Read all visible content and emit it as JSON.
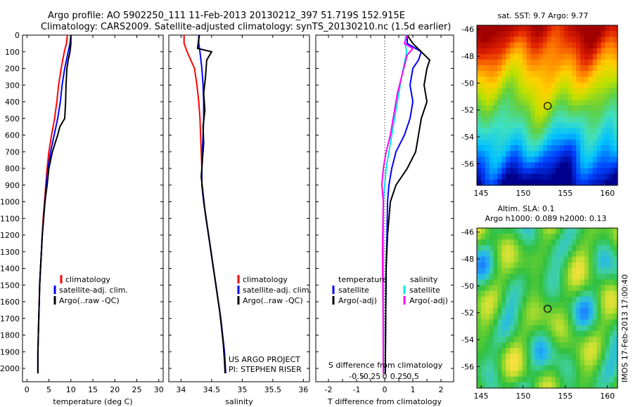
{
  "header": {
    "line1": "Argo profile: AO 5902250_111 11-Feb-2013 20130212_397 51.719S 152.915E",
    "line2": "Climatology: CARS2009. Satellite-adjusted climatology: synTS_20130210.nc (1.5d earlier)"
  },
  "colors": {
    "climatology": "#ff0000",
    "satellite": "#0000ff",
    "argo": "#000000",
    "salinity_satellite": "#00e5e5",
    "salinity_argo": "#ff00ff"
  },
  "chart_data": [
    {
      "type": "line",
      "name": "temperature_profile",
      "xlabel": "temperature (deg C)",
      "ylabel": "",
      "xlim": [
        -1,
        31
      ],
      "ylim": [
        2080,
        0
      ],
      "xticks": [
        0,
        5,
        10,
        15,
        20,
        25,
        30
      ],
      "yticks": [
        0,
        100,
        200,
        300,
        400,
        500,
        600,
        700,
        800,
        900,
        1000,
        1100,
        1200,
        1300,
        1400,
        1500,
        1600,
        1700,
        1800,
        1900,
        2000
      ],
      "legend": [
        "climatology",
        "satellite-adj. clim.",
        "Argo(..raw -QC)"
      ],
      "series": [
        {
          "name": "climatology",
          "color": "#ff0000",
          "points": [
            [
              9.2,
              0
            ],
            [
              9.0,
              50
            ],
            [
              8.5,
              100
            ],
            [
              7.8,
              200
            ],
            [
              7.2,
              300
            ],
            [
              6.8,
              400
            ],
            [
              6.3,
              500
            ],
            [
              5.6,
              600
            ],
            [
              5.0,
              700
            ],
            [
              4.6,
              800
            ],
            [
              4.3,
              900
            ],
            [
              4.0,
              1000
            ],
            [
              3.7,
              1100
            ],
            [
              3.5,
              1200
            ],
            [
              3.3,
              1300
            ],
            [
              3.1,
              1400
            ],
            [
              2.9,
              1500
            ],
            [
              2.8,
              1600
            ],
            [
              2.7,
              1700
            ],
            [
              2.6,
              1800
            ],
            [
              2.5,
              1900
            ],
            [
              2.5,
              2030
            ]
          ]
        },
        {
          "name": "satellite-adj. clim.",
          "color": "#0000ff",
          "points": [
            [
              10.0,
              0
            ],
            [
              9.8,
              50
            ],
            [
              9.4,
              100
            ],
            [
              8.6,
              200
            ],
            [
              8.0,
              300
            ],
            [
              7.6,
              400
            ],
            [
              7.0,
              500
            ],
            [
              6.2,
              600
            ],
            [
              5.4,
              700
            ],
            [
              4.8,
              800
            ],
            [
              4.4,
              900
            ],
            [
              4.1,
              1000
            ],
            [
              3.8,
              1100
            ],
            [
              3.5,
              1200
            ],
            [
              3.3,
              1300
            ],
            [
              3.1,
              1400
            ],
            [
              2.9,
              1500
            ],
            [
              2.8,
              1600
            ],
            [
              2.7,
              1700
            ],
            [
              2.6,
              1800
            ],
            [
              2.5,
              1900
            ],
            [
              2.5,
              2030
            ]
          ]
        },
        {
          "name": "Argo(..raw -QC)",
          "color": "#000000",
          "points": [
            [
              10.0,
              0
            ],
            [
              10.0,
              50
            ],
            [
              9.8,
              100
            ],
            [
              9.4,
              150
            ],
            [
              9.1,
              200
            ],
            [
              8.9,
              300
            ],
            [
              8.8,
              400
            ],
            [
              8.6,
              500
            ],
            [
              7.5,
              550
            ],
            [
              7.0,
              600
            ],
            [
              5.8,
              700
            ],
            [
              5.0,
              800
            ],
            [
              4.6,
              900
            ],
            [
              4.1,
              1000
            ],
            [
              3.8,
              1100
            ],
            [
              3.5,
              1200
            ],
            [
              3.3,
              1300
            ],
            [
              3.1,
              1400
            ],
            [
              2.9,
              1500
            ],
            [
              2.8,
              1600
            ],
            [
              2.7,
              1700
            ],
            [
              2.6,
              1800
            ],
            [
              2.5,
              1900
            ],
            [
              2.5,
              2030
            ]
          ]
        }
      ]
    },
    {
      "type": "line",
      "name": "salinity_profile",
      "xlabel": "salinity",
      "xlim": [
        33.8,
        36.1
      ],
      "ylim": [
        2080,
        0
      ],
      "xticks": [
        34,
        34.5,
        35,
        35.5,
        36
      ],
      "legend": [
        "climatology",
        "satellite-adj. clim.",
        "Argo(..raw -QC)"
      ],
      "credit_line1": "US ARGO PROJECT",
      "credit_line2": "PI: STEPHEN RISER",
      "series": [
        {
          "name": "climatology",
          "color": "#ff0000",
          "points": [
            [
              34.05,
              0
            ],
            [
              34.05,
              50
            ],
            [
              34.1,
              100
            ],
            [
              34.22,
              200
            ],
            [
              34.26,
              300
            ],
            [
              34.29,
              400
            ],
            [
              34.31,
              500
            ],
            [
              34.32,
              600
            ],
            [
              34.33,
              700
            ],
            [
              34.34,
              800
            ],
            [
              34.34,
              900
            ],
            [
              34.37,
              1000
            ],
            [
              34.41,
              1100
            ],
            [
              34.45,
              1200
            ],
            [
              34.49,
              1300
            ],
            [
              34.53,
              1400
            ],
            [
              34.57,
              1500
            ],
            [
              34.61,
              1600
            ],
            [
              34.65,
              1700
            ],
            [
              34.68,
              1800
            ],
            [
              34.71,
              1900
            ],
            [
              34.73,
              2030
            ]
          ]
        },
        {
          "name": "satellite-adj. clim.",
          "color": "#0000ff",
          "points": [
            [
              34.29,
              0
            ],
            [
              34.29,
              50
            ],
            [
              34.31,
              100
            ],
            [
              34.34,
              200
            ],
            [
              34.36,
              300
            ],
            [
              34.37,
              400
            ],
            [
              34.37,
              500
            ],
            [
              34.36,
              600
            ],
            [
              34.35,
              700
            ],
            [
              34.34,
              800
            ],
            [
              34.34,
              900
            ],
            [
              34.37,
              1000
            ],
            [
              34.41,
              1100
            ],
            [
              34.45,
              1200
            ],
            [
              34.49,
              1300
            ],
            [
              34.53,
              1400
            ],
            [
              34.57,
              1500
            ],
            [
              34.61,
              1600
            ],
            [
              34.65,
              1700
            ],
            [
              34.68,
              1800
            ],
            [
              34.71,
              1900
            ],
            [
              34.73,
              2030
            ]
          ]
        },
        {
          "name": "Argo(..raw -QC)",
          "color": "#000000",
          "points": [
            [
              34.3,
              0
            ],
            [
              34.28,
              50
            ],
            [
              34.27,
              80
            ],
            [
              34.5,
              100
            ],
            [
              34.42,
              150
            ],
            [
              34.4,
              250
            ],
            [
              34.37,
              350
            ],
            [
              34.39,
              450
            ],
            [
              34.36,
              550
            ],
            [
              34.37,
              650
            ],
            [
              34.35,
              750
            ],
            [
              34.33,
              850
            ],
            [
              34.36,
              950
            ],
            [
              34.39,
              1050
            ],
            [
              34.43,
              1150
            ],
            [
              34.47,
              1250
            ],
            [
              34.51,
              1350
            ],
            [
              34.55,
              1450
            ],
            [
              34.59,
              1550
            ],
            [
              34.63,
              1650
            ],
            [
              34.66,
              1750
            ],
            [
              34.69,
              1850
            ],
            [
              34.71,
              1950
            ],
            [
              34.72,
              2030
            ]
          ]
        }
      ]
    },
    {
      "type": "line",
      "name": "difference_profile",
      "xlabel": "T difference from climatology",
      "s_axis_label": "S difference from climatology",
      "xlim": [
        -2.45,
        2.45
      ],
      "ylim": [
        2080,
        0
      ],
      "xticks": [
        -2,
        -1.5,
        -1,
        -0.5,
        0,
        0.5,
        1,
        1.5,
        2
      ],
      "xtick_labels": [
        "-2",
        "",
        "-1",
        "",
        "0",
        "",
        "1",
        "",
        "2"
      ],
      "s_ticks": [
        "-0.5",
        "-0.25",
        "0",
        "0.25",
        "0.5"
      ],
      "legend_temperature_title": "temperature",
      "legend_salinity_title": "salinity",
      "legend_temperature": [
        "satellite",
        "Argo(-adj)"
      ],
      "legend_salinity": [
        "satellite",
        "Argo(-adj)"
      ],
      "series": [
        {
          "name": "temperature satellite",
          "color": "#0000ff",
          "points": [
            [
              0.8,
              0
            ],
            [
              0.8,
              50
            ],
            [
              1.3,
              100
            ],
            [
              1.2,
              150
            ],
            [
              1.0,
              200
            ],
            [
              0.9,
              300
            ],
            [
              1.0,
              400
            ],
            [
              0.9,
              500
            ],
            [
              0.7,
              600
            ],
            [
              0.4,
              700
            ],
            [
              0.25,
              800
            ],
            [
              0.15,
              900
            ],
            [
              0.1,
              1000
            ],
            [
              0.08,
              1200
            ],
            [
              0.05,
              1400
            ],
            [
              0.04,
              1600
            ],
            [
              0.03,
              1800
            ],
            [
              0.02,
              2030
            ]
          ]
        },
        {
          "name": "temperature Argo(-adj)",
          "color": "#000000",
          "points": [
            [
              0.8,
              0
            ],
            [
              1.0,
              50
            ],
            [
              1.3,
              100
            ],
            [
              1.6,
              150
            ],
            [
              1.5,
              200
            ],
            [
              1.4,
              300
            ],
            [
              1.5,
              400
            ],
            [
              1.3,
              500
            ],
            [
              1.2,
              600
            ],
            [
              1.1,
              700
            ],
            [
              0.8,
              800
            ],
            [
              0.4,
              900
            ],
            [
              0.2,
              1000
            ],
            [
              0.1,
              1200
            ],
            [
              0.05,
              1400
            ],
            [
              0.04,
              1600
            ],
            [
              0.03,
              1800
            ],
            [
              0.02,
              2030
            ]
          ]
        },
        {
          "name": "salinity satellite",
          "color": "#00e5e5",
          "points": [
            [
              0.75,
              0
            ],
            [
              0.72,
              50
            ],
            [
              0.78,
              100
            ],
            [
              0.72,
              150
            ],
            [
              0.6,
              250
            ],
            [
              0.5,
              350
            ],
            [
              0.35,
              500
            ],
            [
              0.25,
              600
            ],
            [
              0.15,
              700
            ],
            [
              0.05,
              800
            ],
            [
              0.0,
              900
            ],
            [
              -0.05,
              1000
            ],
            [
              -0.05,
              1300
            ],
            [
              -0.05,
              1600
            ],
            [
              -0.05,
              2030
            ]
          ]
        },
        {
          "name": "salinity Argo(-adj)",
          "color": "#ff00ff",
          "points": [
            [
              0.8,
              0
            ],
            [
              0.7,
              50
            ],
            [
              1.0,
              80
            ],
            [
              0.8,
              120
            ],
            [
              0.6,
              250
            ],
            [
              0.45,
              350
            ],
            [
              0.3,
              500
            ],
            [
              0.2,
              600
            ],
            [
              0.05,
              700
            ],
            [
              -0.05,
              800
            ],
            [
              -0.1,
              900
            ],
            [
              -0.05,
              1000
            ],
            [
              -0.08,
              1300
            ],
            [
              -0.06,
              1600
            ],
            [
              -0.05,
              2030
            ]
          ]
        }
      ]
    },
    {
      "type": "heatmap",
      "name": "sst_map",
      "title": "sat. SST: 9.7  Argo: 9.77",
      "xlim": [
        144.5,
        161.2
      ],
      "ylim": [
        -57.6,
        -45.7
      ],
      "xticks": [
        145,
        150,
        155,
        160
      ],
      "yticks": [
        -46,
        -48,
        -50,
        -52,
        -54,
        -56
      ],
      "colorscale": [
        "#00008f",
        "#0040ff",
        "#00c0ff",
        "#40e0c0",
        "#60d040",
        "#c0e000",
        "#ffd000",
        "#ff8000",
        "#e02000",
        "#a00000"
      ],
      "float_position": [
        152.9,
        -51.7
      ]
    },
    {
      "type": "heatmap",
      "name": "sla_map",
      "title_line1": "Altim. SLA: 0.1",
      "title_line2": "Argo h1000: 0.089  h2000: 0.13",
      "xlim": [
        144.5,
        161.2
      ],
      "ylim": [
        -57.6,
        -45.7
      ],
      "xticks": [
        145,
        150,
        155,
        160
      ],
      "yticks": [
        -46,
        -48,
        -50,
        -52,
        -54,
        -56
      ],
      "float_position": [
        152.9,
        -51.7
      ],
      "stamp": "IMOS 17-Feb-2013 17:00:40"
    }
  ]
}
